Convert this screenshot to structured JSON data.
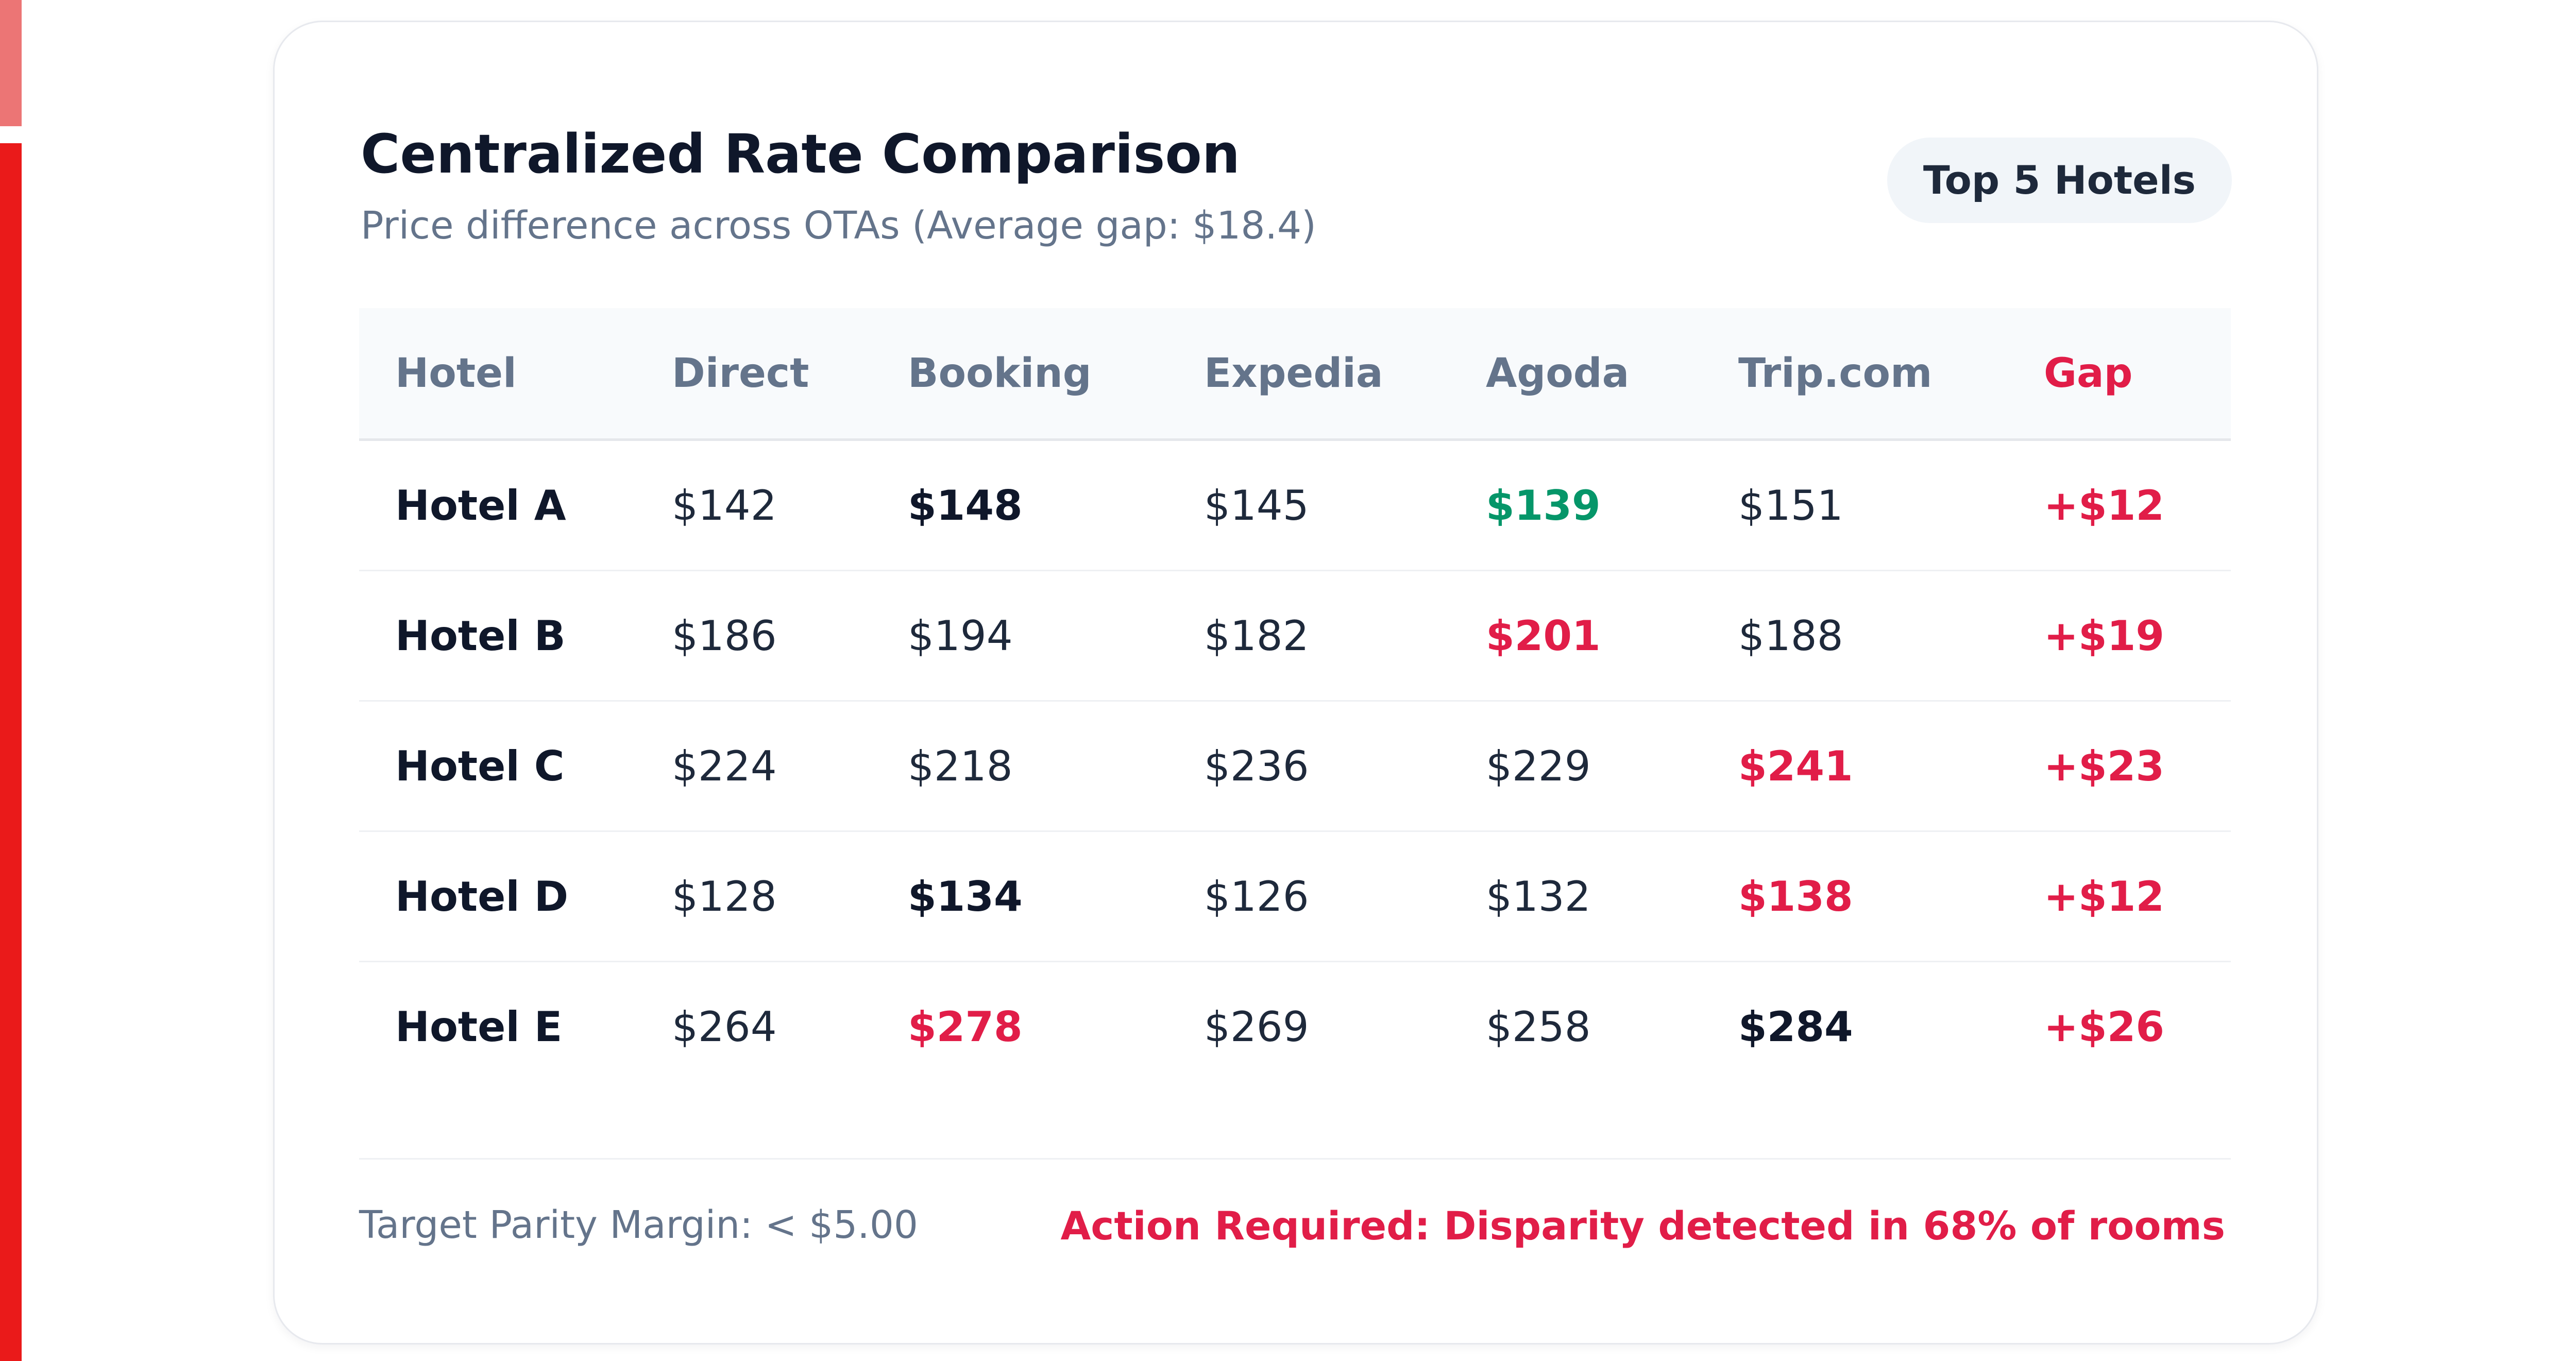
{
  "card": {
    "title": "Centralized Rate Comparison",
    "subtitle": "Price difference across OTAs (Average gap: $18.4)",
    "badge": "Top 5 Hotels"
  },
  "table": {
    "headers": [
      "Hotel",
      "Direct",
      "Booking",
      "Expedia",
      "Agoda",
      "Trip.com",
      "Gap"
    ],
    "rows": [
      {
        "hotel": "Hotel A",
        "direct": "$142",
        "booking": "$148",
        "expedia": "$145",
        "agoda": "$139",
        "trip": "$151",
        "gap": "+$12"
      },
      {
        "hotel": "Hotel B",
        "direct": "$186",
        "booking": "$194",
        "expedia": "$182",
        "agoda": "$201",
        "trip": "$188",
        "gap": "+$19"
      },
      {
        "hotel": "Hotel C",
        "direct": "$224",
        "booking": "$218",
        "expedia": "$236",
        "agoda": "$229",
        "trip": "$241",
        "gap": "+$23"
      },
      {
        "hotel": "Hotel D",
        "direct": "$128",
        "booking": "$134",
        "expedia": "$126",
        "agoda": "$132",
        "trip": "$138",
        "gap": "+$12"
      },
      {
        "hotel": "Hotel E",
        "direct": "$264",
        "booking": "$278",
        "expedia": "$269",
        "agoda": "$258",
        "trip": "$284",
        "gap": "+$26"
      }
    ]
  },
  "footer": {
    "target": "Target Parity Margin: < $5.00",
    "alert": "Action Required: Disparity detected in 68% of rooms"
  },
  "colors": {
    "accent_red": "#e11d48",
    "low_green": "#059669",
    "side_strip": "#ea1a1a"
  }
}
